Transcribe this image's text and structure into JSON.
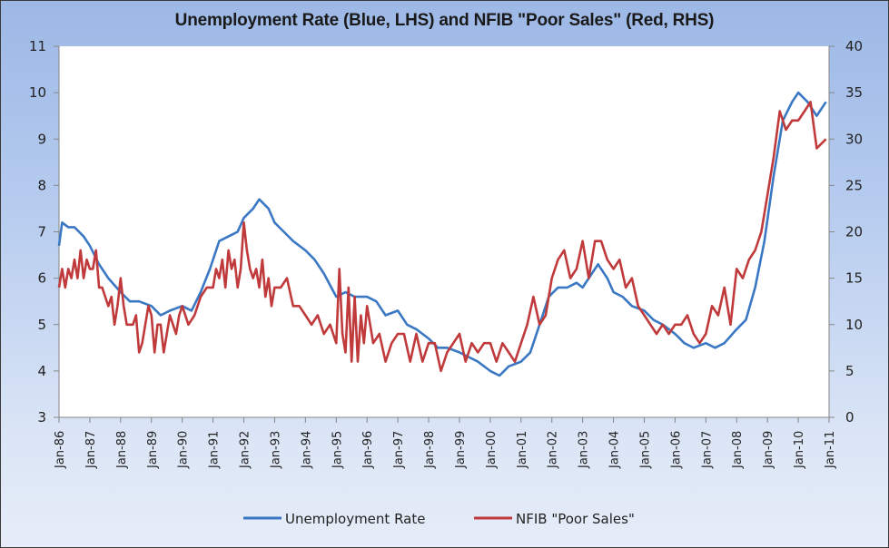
{
  "chart_data": {
    "type": "line",
    "title": "Unemployment Rate (Blue, LHS) and NFIB \"Poor Sales\" (Red, RHS)",
    "xlabel": "",
    "ylabel_left": "",
    "ylabel_right": "",
    "x_range": [
      "Jan-86",
      "Jan-11"
    ],
    "x_ticks": [
      "Jan-86",
      "Jan-87",
      "Jan-88",
      "Jan-89",
      "Jan-90",
      "Jan-91",
      "Jan-92",
      "Jan-93",
      "Jan-94",
      "Jan-95",
      "Jan-96",
      "Jan-97",
      "Jan-98",
      "Jan-99",
      "Jan-00",
      "Jan-01",
      "Jan-02",
      "Jan-03",
      "Jan-04",
      "Jan-05",
      "Jan-06",
      "Jan-07",
      "Jan-08",
      "Jan-09",
      "Jan-10",
      "Jan-11"
    ],
    "y_left": {
      "min": 3,
      "max": 11,
      "ticks": [
        "3",
        "4",
        "5",
        "6",
        "7",
        "8",
        "9",
        "10",
        "11"
      ]
    },
    "y_right": {
      "min": 0,
      "max": 40,
      "ticks": [
        "0",
        "5",
        "10",
        "15",
        "20",
        "25",
        "30",
        "35",
        "40"
      ]
    },
    "grid": false,
    "legend_position": "bottom",
    "series": [
      {
        "name": "Unemployment Rate",
        "axis": "left",
        "color": "#3b78c4",
        "x_years": [
          1986.0,
          1986.1,
          1986.3,
          1986.5,
          1986.8,
          1987.0,
          1987.3,
          1987.6,
          1988.0,
          1988.3,
          1988.6,
          1989.0,
          1989.3,
          1989.6,
          1990.0,
          1990.3,
          1990.6,
          1990.9,
          1991.2,
          1991.5,
          1991.8,
          1992.0,
          1992.3,
          1992.5,
          1992.8,
          1993.0,
          1993.3,
          1993.6,
          1994.0,
          1994.3,
          1994.6,
          1995.0,
          1995.3,
          1995.6,
          1996.0,
          1996.3,
          1996.6,
          1997.0,
          1997.3,
          1997.6,
          1998.0,
          1998.3,
          1998.6,
          1999.0,
          1999.3,
          1999.6,
          2000.0,
          2000.3,
          2000.6,
          2001.0,
          2001.3,
          2001.6,
          2001.9,
          2002.2,
          2002.5,
          2002.8,
          2003.0,
          2003.3,
          2003.5,
          2003.8,
          2004.0,
          2004.3,
          2004.6,
          2005.0,
          2005.3,
          2005.6,
          2006.0,
          2006.3,
          2006.6,
          2007.0,
          2007.3,
          2007.6,
          2008.0,
          2008.3,
          2008.6,
          2008.9,
          2009.2,
          2009.5,
          2009.8,
          2010.0,
          2010.3,
          2010.6,
          2010.9
        ],
        "values": [
          6.7,
          7.2,
          7.1,
          7.1,
          6.9,
          6.7,
          6.3,
          6.0,
          5.7,
          5.5,
          5.5,
          5.4,
          5.2,
          5.3,
          5.4,
          5.3,
          5.7,
          6.2,
          6.8,
          6.9,
          7.0,
          7.3,
          7.5,
          7.7,
          7.5,
          7.2,
          7.0,
          6.8,
          6.6,
          6.4,
          6.1,
          5.6,
          5.7,
          5.6,
          5.6,
          5.5,
          5.2,
          5.3,
          5.0,
          4.9,
          4.7,
          4.5,
          4.5,
          4.4,
          4.3,
          4.2,
          4.0,
          3.9,
          4.1,
          4.2,
          4.4,
          5.0,
          5.6,
          5.8,
          5.8,
          5.9,
          5.8,
          6.1,
          6.3,
          6.0,
          5.7,
          5.6,
          5.4,
          5.3,
          5.1,
          5.0,
          4.8,
          4.6,
          4.5,
          4.6,
          4.5,
          4.6,
          4.9,
          5.1,
          5.8,
          6.8,
          8.2,
          9.4,
          9.8,
          10.0,
          9.8,
          9.5,
          9.8
        ]
      },
      {
        "name": "NFIB \"Poor Sales\"",
        "axis": "right",
        "color": "#c0393b",
        "x_years": [
          1986.0,
          1986.1,
          1986.2,
          1986.3,
          1986.4,
          1986.5,
          1986.6,
          1986.7,
          1986.8,
          1986.9,
          1987.0,
          1987.1,
          1987.2,
          1987.3,
          1987.4,
          1987.5,
          1987.6,
          1987.7,
          1987.8,
          1987.9,
          1988.0,
          1988.1,
          1988.2,
          1988.3,
          1988.4,
          1988.5,
          1988.6,
          1988.7,
          1988.8,
          1988.9,
          1989.0,
          1989.1,
          1989.2,
          1989.3,
          1989.4,
          1989.5,
          1989.6,
          1989.7,
          1989.8,
          1989.9,
          1990.0,
          1990.2,
          1990.4,
          1990.6,
          1990.8,
          1991.0,
          1991.1,
          1991.2,
          1991.3,
          1991.4,
          1991.5,
          1991.6,
          1991.7,
          1991.8,
          1991.9,
          1992.0,
          1992.1,
          1992.2,
          1992.3,
          1992.4,
          1992.5,
          1992.6,
          1992.7,
          1992.8,
          1992.9,
          1993.0,
          1993.2,
          1993.4,
          1993.6,
          1993.8,
          1994.0,
          1994.2,
          1994.4,
          1994.6,
          1994.8,
          1995.0,
          1995.1,
          1995.2,
          1995.3,
          1995.4,
          1995.5,
          1995.6,
          1995.7,
          1995.8,
          1995.9,
          1996.0,
          1996.2,
          1996.4,
          1996.6,
          1996.8,
          1997.0,
          1997.2,
          1997.4,
          1997.6,
          1997.8,
          1998.0,
          1998.2,
          1998.4,
          1998.6,
          1998.8,
          1999.0,
          1999.2,
          1999.4,
          1999.6,
          1999.8,
          2000.0,
          2000.2,
          2000.4,
          2000.6,
          2000.8,
          2001.0,
          2001.2,
          2001.4,
          2001.6,
          2001.8,
          2002.0,
          2002.2,
          2002.4,
          2002.6,
          2002.8,
          2003.0,
          2003.2,
          2003.4,
          2003.6,
          2003.8,
          2004.0,
          2004.2,
          2004.4,
          2004.6,
          2004.8,
          2005.0,
          2005.2,
          2005.4,
          2005.6,
          2005.8,
          2006.0,
          2006.2,
          2006.4,
          2006.6,
          2006.8,
          2007.0,
          2007.2,
          2007.4,
          2007.6,
          2007.8,
          2008.0,
          2008.2,
          2008.4,
          2008.6,
          2008.8,
          2009.0,
          2009.2,
          2009.4,
          2009.6,
          2009.8,
          2010.0,
          2010.2,
          2010.4,
          2010.6,
          2010.9
        ],
        "values": [
          14,
          16,
          14,
          16,
          15,
          17,
          15,
          18,
          15,
          17,
          16,
          16,
          18,
          14,
          14,
          13,
          12,
          13,
          10,
          12,
          15,
          12,
          10,
          10,
          10,
          11,
          7,
          8,
          10,
          12,
          11,
          7,
          10,
          10,
          7,
          9,
          11,
          10,
          9,
          11,
          12,
          10,
          11,
          13,
          14,
          14,
          16,
          15,
          17,
          14,
          18,
          16,
          17,
          14,
          16,
          21,
          18,
          16,
          15,
          16,
          14,
          17,
          13,
          15,
          12,
          14,
          14,
          15,
          12,
          12,
          11,
          10,
          11,
          9,
          10,
          8,
          16,
          9,
          7,
          14,
          6,
          13,
          6,
          11,
          8,
          12,
          8,
          9,
          6,
          8,
          9,
          9,
          6,
          9,
          6,
          8,
          8,
          5,
          7,
          8,
          9,
          6,
          8,
          7,
          8,
          8,
          6,
          8,
          7,
          6,
          8,
          10,
          13,
          10,
          11,
          15,
          17,
          18,
          15,
          16,
          19,
          15,
          19,
          19,
          17,
          16,
          17,
          14,
          15,
          12,
          11,
          10,
          9,
          10,
          9,
          10,
          10,
          11,
          9,
          8,
          9,
          12,
          11,
          14,
          10,
          16,
          15,
          17,
          18,
          20,
          24,
          28,
          33,
          31,
          32,
          32,
          33,
          34,
          29,
          30,
          30
        ]
      }
    ]
  },
  "legend": {
    "items": [
      {
        "label": "Unemployment Rate",
        "color": "#3b78c4"
      },
      {
        "label": "NFIB \"Poor Sales\"",
        "color": "#c0393b"
      }
    ]
  }
}
